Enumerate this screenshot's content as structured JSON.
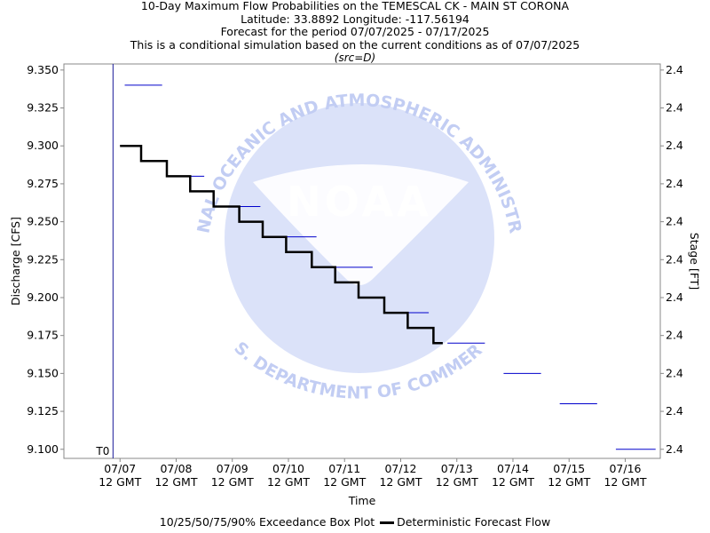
{
  "header": {
    "title": "10-Day Maximum Flow Probabilities on the TEMESCAL CK - MAIN ST CORONA",
    "location": "Latitude: 33.8892 Longitude: -117.56194",
    "period": "Forecast for the period 07/07/2025 - 07/17/2025",
    "note": "This is a conditional simulation based on the current conditions as of 07/07/2025",
    "source": "(src=D)"
  },
  "watermark": {
    "agency": "NOAA",
    "top_arc": "NATIONAL OCEANIC AND ATMOSPHERIC ADMINISTRATION",
    "bottom_arc": "U.S. DEPARTMENT OF COMMERCE"
  },
  "legend": {
    "box_plot_label": "10/25/50/75/90% Exceedance Box Plot",
    "forecast_label": "Deterministic Forecast Flow"
  },
  "colors": {
    "forecast_line": "#000000",
    "exceedance_marker": "#0000cc",
    "t0_line": "#1a1a99",
    "watermark_fill": "#cfd8f7",
    "watermark_text": "#c2cdf3"
  },
  "chart_data": {
    "type": "line",
    "xlabel": "Time",
    "ylabel": "Discharge [CFS]",
    "ylabel_right": "Stage [FT]",
    "ylim": [
      9.094,
      9.354
    ],
    "y_ticks": [
      "9.100",
      "9.125",
      "9.150",
      "9.175",
      "9.200",
      "9.225",
      "9.250",
      "9.275",
      "9.300",
      "9.325",
      "9.350"
    ],
    "y_right_ticks": [
      "2.4",
      "2.4",
      "2.4",
      "2.4",
      "2.4",
      "2.4",
      "2.4",
      "2.4",
      "2.4",
      "2.4",
      "2.4"
    ],
    "xlim": [
      "07/06 12:00",
      "07/17 03:00"
    ],
    "x_ticks": [
      {
        "date": "07/07",
        "time": "12 GMT"
      },
      {
        "date": "07/08",
        "time": "12 GMT"
      },
      {
        "date": "07/09",
        "time": "12 GMT"
      },
      {
        "date": "07/10",
        "time": "12 GMT"
      },
      {
        "date": "07/11",
        "time": "12 GMT"
      },
      {
        "date": "07/12",
        "time": "12 GMT"
      },
      {
        "date": "07/13",
        "time": "12 GMT"
      },
      {
        "date": "07/14",
        "time": "12 GMT"
      },
      {
        "date": "07/15",
        "time": "12 GMT"
      },
      {
        "date": "07/16",
        "time": "12 GMT"
      }
    ],
    "t0_label": "T0",
    "t0_time": "07/07 09:00",
    "series": [
      {
        "name": "Deterministic Forecast Flow",
        "points": [
          {
            "t": "07/07 12:00",
            "y": 9.3
          },
          {
            "t": "07/07 21:00",
            "y": 9.3
          },
          {
            "t": "07/07 21:00",
            "y": 9.29
          },
          {
            "t": "07/08 08:00",
            "y": 9.29
          },
          {
            "t": "07/08 08:00",
            "y": 9.28
          },
          {
            "t": "07/08 18:00",
            "y": 9.28
          },
          {
            "t": "07/08 18:00",
            "y": 9.27
          },
          {
            "t": "07/09 04:00",
            "y": 9.27
          },
          {
            "t": "07/09 04:00",
            "y": 9.26
          },
          {
            "t": "07/09 15:00",
            "y": 9.26
          },
          {
            "t": "07/09 15:00",
            "y": 9.25
          },
          {
            "t": "07/10 01:00",
            "y": 9.25
          },
          {
            "t": "07/10 01:00",
            "y": 9.24
          },
          {
            "t": "07/10 11:00",
            "y": 9.24
          },
          {
            "t": "07/10 11:00",
            "y": 9.23
          },
          {
            "t": "07/10 22:00",
            "y": 9.23
          },
          {
            "t": "07/10 22:00",
            "y": 9.22
          },
          {
            "t": "07/11 08:00",
            "y": 9.22
          },
          {
            "t": "07/11 08:00",
            "y": 9.21
          },
          {
            "t": "07/11 18:00",
            "y": 9.21
          },
          {
            "t": "07/11 18:00",
            "y": 9.2
          },
          {
            "t": "07/12 05:00",
            "y": 9.2
          },
          {
            "t": "07/12 05:00",
            "y": 9.19
          },
          {
            "t": "07/12 15:00",
            "y": 9.19
          },
          {
            "t": "07/12 15:00",
            "y": 9.18
          },
          {
            "t": "07/13 02:00",
            "y": 9.18
          },
          {
            "t": "07/13 02:00",
            "y": 9.17
          },
          {
            "t": "07/13 06:00",
            "y": 9.17
          }
        ]
      },
      {
        "name": "10/25/50/75/90% Exceedance Box Plot",
        "segments": [
          {
            "t0": "07/07 14:00",
            "t1": "07/08 06:00",
            "y": 9.34
          },
          {
            "t0": "07/08 08:00",
            "t1": "07/09 00:00",
            "y": 9.28
          },
          {
            "t0": "07/09 08:00",
            "t1": "07/10 00:00",
            "y": 9.26
          },
          {
            "t0": "07/10 08:00",
            "t1": "07/11 00:00",
            "y": 9.24
          },
          {
            "t0": "07/11 08:00",
            "t1": "07/12 00:00",
            "y": 9.22
          },
          {
            "t0": "07/12 08:00",
            "t1": "07/13 00:00",
            "y": 9.19
          },
          {
            "t0": "07/13 08:00",
            "t1": "07/14 00:00",
            "y": 9.17
          },
          {
            "t0": "07/14 08:00",
            "t1": "07/15 00:00",
            "y": 9.15
          },
          {
            "t0": "07/15 08:00",
            "t1": "07/16 00:00",
            "y": 9.13
          },
          {
            "t0": "07/16 08:00",
            "t1": "07/17 01:00",
            "y": 9.1
          }
        ]
      }
    ]
  }
}
